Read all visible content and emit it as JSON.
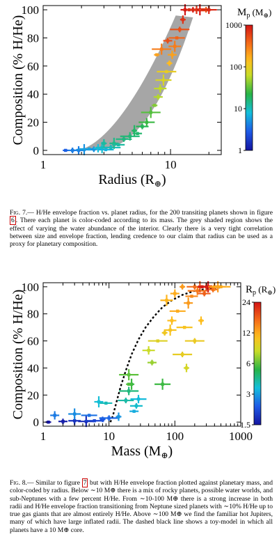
{
  "figures": [
    {
      "id": "fig7",
      "chart_data": {
        "type": "scatter",
        "xlabel": "Radius (R",
        "xlabel_sub": "⊕",
        "ylabel": "Composition (% H/He)",
        "x_scale": "log",
        "xlim": [
          1,
          25
        ],
        "ylim": [
          -3,
          103
        ],
        "x_ticks": [
          {
            "v": 1,
            "l": "1"
          },
          {
            "v": 10,
            "l": "10"
          }
        ],
        "y_ticks": [
          0,
          20,
          40,
          60,
          80,
          100
        ],
        "colorbar": {
          "label_main": "M",
          "label_sub": "p",
          "label_unit": " (M",
          "label_unit_sub": "⊕",
          "ticks": [
            {
              "v": 1,
              "l": "1"
            },
            {
              "v": 10,
              "l": "10"
            },
            {
              "v": 100,
              "l": "100"
            },
            {
              "v": 1000,
              "l": "1000"
            }
          ],
          "range": [
            1,
            1000
          ],
          "scale": "log"
        },
        "shaded_band": {
          "description_color": "#a6a6a6"
        },
        "points": [
          {
            "x": 1.5,
            "y": 0,
            "c": 3
          },
          {
            "x": 1.7,
            "y": 0,
            "c": 4
          },
          {
            "x": 1.9,
            "y": 0,
            "c": 4
          },
          {
            "x": 2.1,
            "y": 0.5,
            "c": 5
          },
          {
            "x": 2.3,
            "y": 1,
            "c": 6
          },
          {
            "x": 2.5,
            "y": 0.8,
            "c": 5
          },
          {
            "x": 2.7,
            "y": 1.5,
            "c": 8
          },
          {
            "x": 2.9,
            "y": 2,
            "c": 9
          },
          {
            "x": 3.1,
            "y": 0.5,
            "c": 7
          },
          {
            "x": 3.4,
            "y": 2,
            "c": 10
          },
          {
            "x": 3.0,
            "y": 5,
            "c": 12
          },
          {
            "x": 3.6,
            "y": 5,
            "c": 14
          },
          {
            "x": 3.9,
            "y": 4,
            "c": 12
          },
          {
            "x": 4.3,
            "y": 8,
            "c": 15
          },
          {
            "x": 4.8,
            "y": 10,
            "c": 16
          },
          {
            "x": 5.2,
            "y": 14,
            "c": 18
          },
          {
            "x": 5.5,
            "y": 12,
            "c": 17
          },
          {
            "x": 6.0,
            "y": 17,
            "c": 20
          },
          {
            "x": 6.5,
            "y": 20,
            "c": 25
          },
          {
            "x": 7.0,
            "y": 27,
            "c": 30
          },
          {
            "x": 7.5,
            "y": 32,
            "c": 40
          },
          {
            "x": 8.0,
            "y": 38,
            "c": 55
          },
          {
            "x": 8.3,
            "y": 44,
            "c": 60
          },
          {
            "x": 8.8,
            "y": 50,
            "c": 80
          },
          {
            "x": 9.3,
            "y": 56,
            "c": 100
          },
          {
            "x": 9.8,
            "y": 62,
            "c": 150
          },
          {
            "x": 10.3,
            "y": 68,
            "c": 200
          },
          {
            "x": 10.8,
            "y": 74,
            "c": 300
          },
          {
            "x": 11.2,
            "y": 80,
            "c": 400
          },
          {
            "x": 11.8,
            "y": 86,
            "c": 500
          },
          {
            "x": 12.5,
            "y": 93,
            "c": 700
          },
          {
            "x": 13.0,
            "y": 100,
            "c": 1000
          },
          {
            "x": 14,
            "y": 100,
            "c": 800
          },
          {
            "x": 15,
            "y": 100,
            "c": 900
          },
          {
            "x": 16,
            "y": 100,
            "c": 700
          },
          {
            "x": 17,
            "y": 100,
            "c": 1000
          },
          {
            "x": 18,
            "y": 100,
            "c": 600
          },
          {
            "x": 19,
            "y": 100,
            "c": 500
          },
          {
            "x": 20,
            "y": 100,
            "c": 800
          },
          {
            "x": 8.5,
            "y": 72,
            "c": 300
          },
          {
            "x": 7.8,
            "y": 68,
            "c": 200
          },
          {
            "x": 9.5,
            "y": 78,
            "c": 500
          }
        ]
      },
      "caption": {
        "label": "Fig. 7.",
        "text_before_ref": "— H/He envelope fraction vs. planet radius, for the  200 transiting planets shown in figure",
        "ref": "6",
        "text_after_ref": ". There each planet is color-coded according to its mass.  The grey shaded region shows the effect of varying the water abundance of the interior.  Clearly there is a very tight correlation between size and envelope fraction, lending credence to our claim that radius can be used as a proxy for planetary composition."
      }
    },
    {
      "id": "fig8",
      "chart_data": {
        "type": "scatter",
        "xlabel": "Mass (M",
        "xlabel_sub": "⊕",
        "ylabel": "Composition (% H/He)",
        "x_scale": "log",
        "xlim": [
          1,
          1000
        ],
        "ylim": [
          -3,
          103
        ],
        "x_ticks": [
          {
            "v": 1,
            "l": "1"
          },
          {
            "v": 10,
            "l": "10"
          },
          {
            "v": 100,
            "l": "100"
          },
          {
            "v": 1000,
            "l": "1000"
          }
        ],
        "y_ticks": [
          0,
          20,
          40,
          60,
          80,
          100
        ],
        "colorbar": {
          "label_main": "R",
          "label_sub": "p",
          "label_unit": " (R",
          "label_unit_sub": "⊕",
          "ticks": [
            {
              "v": 1.5,
              "l": "1.5"
            },
            {
              "v": 3,
              "l": "3"
            },
            {
              "v": 6,
              "l": "6"
            },
            {
              "v": 12,
              "l": "12"
            },
            {
              "v": 24,
              "l": "24"
            }
          ],
          "range": [
            1.5,
            24
          ],
          "scale": "log"
        },
        "model_curve": [
          {
            "x": 10.5,
            "y": 0
          },
          {
            "x": 11.5,
            "y": 5
          },
          {
            "x": 13,
            "y": 15
          },
          {
            "x": 15,
            "y": 26
          },
          {
            "x": 18,
            "y": 38
          },
          {
            "x": 22,
            "y": 50
          },
          {
            "x": 28,
            "y": 61
          },
          {
            "x": 36,
            "y": 70
          },
          {
            "x": 48,
            "y": 78
          },
          {
            "x": 65,
            "y": 85
          },
          {
            "x": 90,
            "y": 90
          },
          {
            "x": 130,
            "y": 94
          },
          {
            "x": 200,
            "y": 97
          },
          {
            "x": 350,
            "y": 99
          },
          {
            "x": 500,
            "y": 99.5
          }
        ],
        "points": [
          {
            "x": 1.2,
            "y": 0,
            "c": 1.5
          },
          {
            "x": 2,
            "y": 0.5,
            "c": 1.6
          },
          {
            "x": 3,
            "y": 1,
            "c": 1.8
          },
          {
            "x": 4.5,
            "y": 0.5,
            "c": 1.7
          },
          {
            "x": 6,
            "y": 1,
            "c": 2.0
          },
          {
            "x": 8,
            "y": 2,
            "c": 2.2
          },
          {
            "x": 1.5,
            "y": 5,
            "c": 2.6
          },
          {
            "x": 3,
            "y": 6,
            "c": 2.8
          },
          {
            "x": 5,
            "y": 5,
            "c": 2.5
          },
          {
            "x": 10,
            "y": 3,
            "c": 2.4
          },
          {
            "x": 14,
            "y": 4,
            "c": 2.9
          },
          {
            "x": 7,
            "y": 15,
            "c": 3.5
          },
          {
            "x": 9,
            "y": 14,
            "c": 3.8
          },
          {
            "x": 18,
            "y": 16,
            "c": 4.0
          },
          {
            "x": 20,
            "y": 23,
            "c": 4.5
          },
          {
            "x": 22,
            "y": 28,
            "c": 5.5
          },
          {
            "x": 24,
            "y": 8,
            "c": 3.2
          },
          {
            "x": 26,
            "y": 12,
            "c": 3.6
          },
          {
            "x": 28,
            "y": 17,
            "c": 3.4
          },
          {
            "x": 20,
            "y": 35,
            "c": 6.0
          },
          {
            "x": 20,
            "y": 28,
            "c": 5.8
          },
          {
            "x": 45,
            "y": 44,
            "c": 7.0
          },
          {
            "x": 40,
            "y": 53,
            "c": 8.0
          },
          {
            "x": 65,
            "y": 28,
            "c": 5.5
          },
          {
            "x": 55,
            "y": 60,
            "c": 9.0
          },
          {
            "x": 70,
            "y": 66,
            "c": 10.0
          },
          {
            "x": 90,
            "y": 75,
            "c": 11.0
          },
          {
            "x": 85,
            "y": 68,
            "c": 10.5
          },
          {
            "x": 110,
            "y": 82,
            "c": 12.0
          },
          {
            "x": 130,
            "y": 50,
            "c": 9.5
          },
          {
            "x": 150,
            "y": 40,
            "c": 8.5
          },
          {
            "x": 160,
            "y": 88,
            "c": 13.0
          },
          {
            "x": 180,
            "y": 93,
            "c": 14.0
          },
          {
            "x": 200,
            "y": 100,
            "c": 16.0
          },
          {
            "x": 220,
            "y": 97,
            "c": 15.0
          },
          {
            "x": 240,
            "y": 100,
            "c": 18.0
          },
          {
            "x": 260,
            "y": 100,
            "c": 22.0
          },
          {
            "x": 280,
            "y": 95,
            "c": 17.0
          },
          {
            "x": 300,
            "y": 100,
            "c": 20.0
          },
          {
            "x": 320,
            "y": 100,
            "c": 24.0
          },
          {
            "x": 350,
            "y": 100,
            "c": 19.0
          },
          {
            "x": 380,
            "y": 98,
            "c": 16.0
          },
          {
            "x": 400,
            "y": 100,
            "c": 14.0
          },
          {
            "x": 450,
            "y": 100,
            "c": 13.0
          },
          {
            "x": 500,
            "y": 100,
            "c": 12.0
          },
          {
            "x": 130,
            "y": 100,
            "c": 13.0
          },
          {
            "x": 100,
            "y": 95,
            "c": 12.0
          },
          {
            "x": 75,
            "y": 90,
            "c": 11.5
          },
          {
            "x": 140,
            "y": 70,
            "c": 10.5
          },
          {
            "x": 200,
            "y": 60,
            "c": 9.8
          },
          {
            "x": 250,
            "y": 75,
            "c": 11.0
          }
        ]
      },
      "caption": {
        "label": "Fig. 8.",
        "text_before_ref": "— Similar to figure",
        "ref": "7",
        "text_after_ref": " but with H/He envelope fraction plotted against planetary mass, and color-coded by radius. Below ∼10 M⊕ there is a mix of rocky planets, possible water worlds, and sub-Neptunes with a few percent H/He.  From ∼10-100 M⊕ there is a strong increase in both radii and H/He envelope fraction transitioning from Neptune sized planets with ∼10% H/He up to true gas giants that are almost entirely H/He. Above ∼100 M⊕ we find the familiar hot Jupiters, many of which have large inflated radii. The dashed black line shows a toy-model in which all planets have a 10 M⊕ core."
      }
    }
  ]
}
